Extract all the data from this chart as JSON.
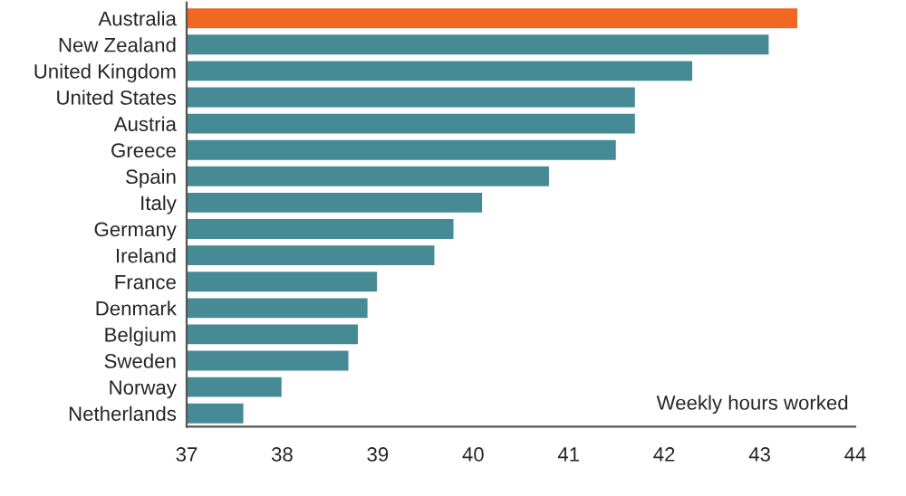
{
  "chart_data": {
    "type": "bar",
    "orientation": "horizontal",
    "categories": [
      "Australia",
      "New Zealand",
      "United Kingdom",
      "United States",
      "Austria",
      "Greece",
      "Spain",
      "Italy",
      "Germany",
      "Ireland",
      "France",
      "Denmark",
      "Belgium",
      "Sweden",
      "Norway",
      "Netherlands"
    ],
    "values": [
      43.4,
      43.1,
      42.3,
      41.7,
      41.7,
      41.5,
      40.8,
      40.1,
      39.8,
      39.6,
      39.0,
      38.9,
      38.8,
      38.7,
      38.0,
      37.6
    ],
    "colors": [
      "#f26722",
      "#468a96",
      "#468a96",
      "#468a96",
      "#468a96",
      "#468a96",
      "#468a96",
      "#468a96",
      "#468a96",
      "#468a96",
      "#468a96",
      "#468a96",
      "#468a96",
      "#468a96",
      "#468a96",
      "#468a96"
    ],
    "xlim": [
      37,
      44
    ],
    "xticks": [
      37,
      38,
      39,
      40,
      41,
      42,
      43,
      44
    ],
    "annotations": [
      "Weekly hours worked"
    ],
    "grid": false,
    "legend": false
  }
}
